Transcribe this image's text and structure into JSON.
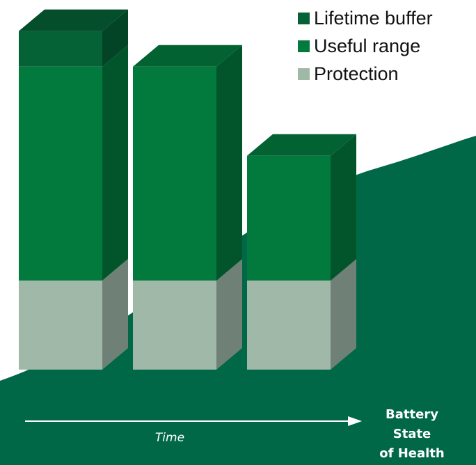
{
  "chart_data": {
    "type": "bar",
    "stacked": true,
    "three_d": true,
    "categories": [
      "",
      "",
      ""
    ],
    "series": [
      {
        "name": "Protection",
        "values": [
          1,
          1,
          1
        ],
        "color": "#9fb8a8"
      },
      {
        "name": "Useful range",
        "values": [
          2.4,
          2.4,
          1.4
        ],
        "color": "#037a3d"
      },
      {
        "name": "Lifetime buffer",
        "values": [
          0.4,
          0,
          0
        ],
        "color": "#056136"
      }
    ],
    "legend": {
      "position": "top-right",
      "items": [
        {
          "label": "Lifetime buffer",
          "color": "#056136"
        },
        {
          "label": "Useful range",
          "color": "#037a3d"
        },
        {
          "label": "Protection",
          "color": "#9fb8a8"
        }
      ]
    },
    "xlabel": "Time",
    "axis_end_label": [
      "Battery",
      "State",
      "of Health"
    ],
    "grid": false
  },
  "background": {
    "color": "#006847"
  }
}
